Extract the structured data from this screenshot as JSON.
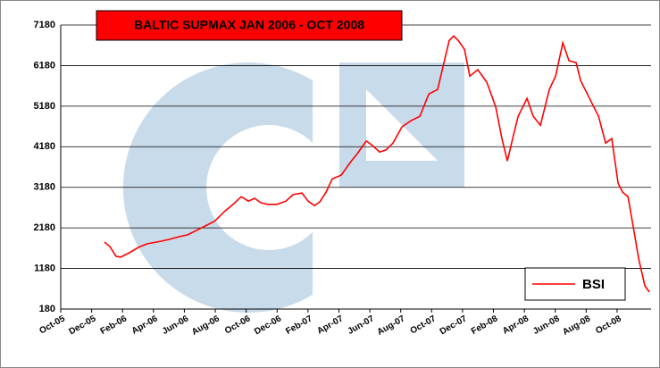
{
  "chart_data": {
    "type": "line",
    "title": "BALTIC SUPMAX JAN 2006 - OCT 2008",
    "x": [
      2.83,
      3.18,
      3.58,
      3.87,
      4.45,
      5.03,
      5.61,
      6.47,
      7.05,
      7.63,
      8.21,
      8.79,
      9.36,
      9.94,
      10.64,
      11.21,
      11.68,
      12.14,
      12.54,
      12.95,
      13.41,
      13.99,
      14.57,
      15.03,
      15.61,
      16.01,
      16.42,
      16.76,
      17.17,
      17.57,
      18.15,
      18.73,
      19.19,
      19.77,
      20.17,
      20.64,
      21.04,
      21.5,
      22.08,
      22.66,
      23.24,
      23.82,
      24.39,
      24.8,
      25.14,
      25.43,
      25.72,
      26.13,
      26.47,
      26.99,
      27.57,
      28.15,
      28.55,
      28.9,
      29.31,
      29.6,
      30.17,
      30.58,
      31.04,
      31.62,
      32.02,
      32.49,
      32.89,
      33.35,
      33.64,
      34.22,
      34.8,
      35.26,
      35.66,
      36.07,
      36.36,
      36.71,
      37.11,
      37.4,
      37.8,
      38.09
    ],
    "series": [
      {
        "name": "BSI",
        "color": "#ff0000",
        "values": [
          1830,
          1720,
          1480,
          1460,
          1570,
          1700,
          1790,
          1850,
          1900,
          1960,
          2010,
          2120,
          2230,
          2340,
          2600,
          2780,
          2950,
          2840,
          2910,
          2800,
          2760,
          2760,
          2840,
          3000,
          3040,
          2840,
          2730,
          2820,
          3060,
          3390,
          3480,
          3790,
          4010,
          4320,
          4210,
          4050,
          4100,
          4270,
          4670,
          4820,
          4930,
          5480,
          5590,
          6250,
          6800,
          6910,
          6800,
          6580,
          5920,
          6080,
          5770,
          5160,
          4380,
          3830,
          4490,
          4930,
          5370,
          4930,
          4710,
          5590,
          5920,
          6740,
          6300,
          6250,
          5810,
          5370,
          4930,
          4270,
          4380,
          3280,
          3060,
          2950,
          2070,
          1410,
          750,
          600
        ]
      }
    ],
    "xlim": [
      0,
      38.2
    ],
    "xticks": [
      {
        "value": 0,
        "label": "Oct-05"
      },
      {
        "value": 2,
        "label": "Dec-05"
      },
      {
        "value": 4,
        "label": "Feb-06"
      },
      {
        "value": 6,
        "label": "Apr-06"
      },
      {
        "value": 8,
        "label": "Jun-06"
      },
      {
        "value": 10,
        "label": "Aug-06"
      },
      {
        "value": 12,
        "label": "Oct-06"
      },
      {
        "value": 14,
        "label": "Dec-06"
      },
      {
        "value": 16,
        "label": "Feb-07"
      },
      {
        "value": 18,
        "label": "Apr-07"
      },
      {
        "value": 20,
        "label": "Jun-07"
      },
      {
        "value": 22,
        "label": "Aug-07"
      },
      {
        "value": 24,
        "label": "Oct-07"
      },
      {
        "value": 26,
        "label": "Dec-07"
      },
      {
        "value": 28,
        "label": "Feb-08"
      },
      {
        "value": 30,
        "label": "Apr-08"
      },
      {
        "value": 32,
        "label": "Jun-08"
      },
      {
        "value": 34,
        "label": "Aug-08"
      },
      {
        "value": 36,
        "label": "Oct-08"
      }
    ],
    "ylim": [
      180,
      7180
    ],
    "yticks": [
      180,
      1180,
      2180,
      3180,
      4180,
      5180,
      6180,
      7180
    ],
    "grid": true,
    "legend": "lower right"
  }
}
